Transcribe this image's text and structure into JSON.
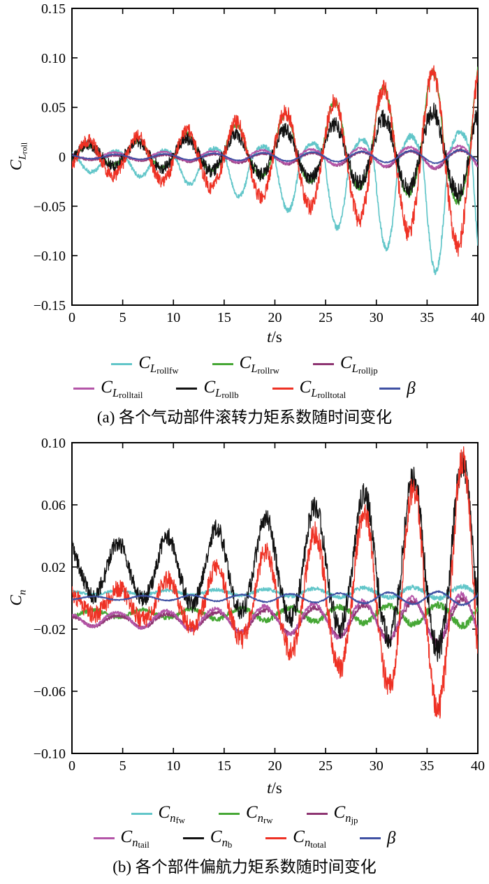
{
  "chart_data": [
    {
      "id": "a",
      "type": "line",
      "caption": "(a) 各个气动部件滚转力矩系数随时间变化",
      "xlabel_italic": "t",
      "xlabel_rest": "/s",
      "ylabel": {
        "base": "C",
        "sub_italic": "L",
        "sub_nested": "roll"
      },
      "xlim": [
        0,
        40
      ],
      "ylim": [
        -0.15,
        0.15
      ],
      "xticks": [
        0,
        5,
        10,
        15,
        20,
        25,
        30,
        35,
        40
      ],
      "xtick_labels": [
        "0",
        "5",
        "10",
        "15",
        "20",
        "25",
        "30",
        "35",
        "40"
      ],
      "yticks": [
        0.15,
        0.1,
        0.05,
        0,
        -0.05,
        -0.1,
        -0.15
      ],
      "ytick_labels": [
        "0.15",
        "0.10",
        "0.05",
        "0",
        "−0.05",
        "−0.10",
        "−0.15"
      ],
      "grid": false,
      "legend_position": "below",
      "legend_rows": [
        [
          0,
          1,
          2
        ],
        [
          3,
          4,
          5,
          6
        ]
      ],
      "series": [
        {
          "key": "CLrollfw",
          "label": {
            "base": "C",
            "sub_italic": "L",
            "sub_nested": "rollfw"
          },
          "color": "#62c6c9",
          "mean": -0.003,
          "amp_pos_start": 0.008,
          "amp_pos_end": 0.03,
          "amp_neg_start": 0.012,
          "amp_neg_end": 0.135,
          "pow": 1.8,
          "period_s": 4.85,
          "phase": 2.3,
          "noise": 0.003,
          "width": 1.7,
          "seed": 1
        },
        {
          "key": "CLrollrw",
          "label": {
            "base": "C",
            "sub_italic": "L",
            "sub_nested": "rollrw"
          },
          "color": "#46a735",
          "mean": 0.001,
          "amp_pos_start": 0.01,
          "amp_pos_end": 0.1,
          "amp_neg_start": 0.008,
          "amp_neg_end": 0.05,
          "pow": 1.6,
          "period_s": 4.85,
          "phase": -0.5,
          "noise": 0.003,
          "width": 1.7,
          "seed": 2
        },
        {
          "key": "CLrolljp",
          "label": {
            "base": "C",
            "sub_italic": "L",
            "sub_nested": "rolljp"
          },
          "color": "#8e3572",
          "mean": -0.001,
          "amp_pos_start": 0.002,
          "amp_pos_end": 0.008,
          "amp_neg_start": 0.002,
          "amp_neg_end": 0.012,
          "pow": 1.3,
          "period_s": 4.85,
          "phase": 2.3,
          "noise": 0.0012,
          "width": 1.6,
          "seed": 3
        },
        {
          "key": "CLrolltail",
          "label": {
            "base": "C",
            "sub_italic": "L",
            "sub_nested": "rolltail"
          },
          "color": "#b455a8",
          "mean": 0.001,
          "amp_pos_start": 0.003,
          "amp_pos_end": 0.01,
          "amp_neg_start": 0.003,
          "amp_neg_end": 0.014,
          "pow": 1.3,
          "period_s": 4.85,
          "phase": 2.45,
          "noise": 0.0012,
          "width": 1.6,
          "seed": 4
        },
        {
          "key": "CLrollb",
          "label": {
            "base": "C",
            "sub_italic": "L",
            "sub_nested": "rollb"
          },
          "color": "#111111",
          "mean": 0.002,
          "amp_pos_start": 0.01,
          "amp_pos_end": 0.05,
          "amp_neg_start": 0.01,
          "amp_neg_end": 0.042,
          "pow": 1.5,
          "period_s": 4.85,
          "phase": -0.5,
          "noise": 0.008,
          "width": 1.3,
          "seed": 5
        },
        {
          "key": "CLrolltotal",
          "label": {
            "base": "C",
            "sub_italic": "L",
            "sub_nested": "rolltotal"
          },
          "color": "#ee3124",
          "mean": -0.002,
          "amp_pos_start": 0.018,
          "amp_pos_end": 0.1,
          "amp_neg_start": 0.015,
          "amp_neg_end": 0.095,
          "pow": 1.6,
          "period_s": 4.85,
          "phase": -0.5,
          "noise": 0.009,
          "width": 1.3,
          "seed": 6
        },
        {
          "key": "beta",
          "label": {
            "base": "β"
          },
          "color": "#3f51a3",
          "mean": 0.0,
          "amp_pos_start": 0.002,
          "amp_pos_end": 0.007,
          "amp_neg_start": 0.002,
          "amp_neg_end": 0.007,
          "pow": 1.2,
          "period_s": 4.85,
          "phase": 2.3,
          "noise": 0.0004,
          "width": 1.8,
          "seed": 7
        }
      ]
    },
    {
      "id": "b",
      "type": "line",
      "caption": "(b) 各个部件偏航力矩系数随时间变化",
      "xlabel_italic": "t",
      "xlabel_rest": "/s",
      "ylabel": {
        "base": "C",
        "sub_italic": "n"
      },
      "xlim": [
        0,
        40
      ],
      "ylim": [
        -0.1,
        0.1
      ],
      "xticks": [
        0,
        5,
        10,
        15,
        20,
        25,
        30,
        35,
        40
      ],
      "xtick_labels": [
        "0",
        "5",
        "10",
        "15",
        "20",
        "25",
        "30",
        "35",
        "40"
      ],
      "yticks": [
        0.1,
        0.06,
        0.02,
        -0.02,
        -0.06,
        -0.1
      ],
      "ytick_labels": [
        "0.10",
        "0.06",
        "0.02",
        "−0.02",
        "−0.06",
        "−0.10"
      ],
      "grid": false,
      "legend_position": "below",
      "legend_rows": [
        [
          0,
          1,
          2
        ],
        [
          3,
          4,
          5,
          6
        ]
      ],
      "series": [
        {
          "key": "Cnfw",
          "label": {
            "base": "C",
            "sub_italic": "n",
            "sub_nested": "fw"
          },
          "color": "#62c6c9",
          "mean": 0.0035,
          "amp_pos_start": 0.001,
          "amp_pos_end": 0.004,
          "amp_neg_start": 0.001,
          "amp_neg_end": 0.004,
          "pow": 1.2,
          "period_s": 4.85,
          "phase": 2.0,
          "noise": 0.0012,
          "width": 1.7,
          "seed": 8
        },
        {
          "key": "Cnrw",
          "label": {
            "base": "C",
            "sub_italic": "n",
            "sub_nested": "rw"
          },
          "color": "#46a735",
          "mean": -0.01,
          "amp_pos_start": 0.002,
          "amp_pos_end": 0.006,
          "amp_neg_start": 0.002,
          "amp_neg_end": 0.008,
          "pow": 1.3,
          "period_s": 4.85,
          "phase": 5.14,
          "noise": 0.0018,
          "width": 1.7,
          "seed": 9
        },
        {
          "key": "Cnjp",
          "label": {
            "base": "C",
            "sub_italic": "n",
            "sub_nested": "jp"
          },
          "color": "#8e3572",
          "mean": -0.014,
          "amp_pos_start": 0.002,
          "amp_pos_end": 0.014,
          "amp_neg_start": 0.004,
          "amp_neg_end": 0.016,
          "pow": 1.4,
          "period_s": 4.85,
          "phase": 2.0,
          "noise": 0.0015,
          "width": 1.6,
          "seed": 10
        },
        {
          "key": "Cntail",
          "label": {
            "base": "C",
            "sub_italic": "n",
            "sub_nested": "tail"
          },
          "color": "#b455a8",
          "mean": -0.013,
          "amp_pos_start": 0.003,
          "amp_pos_end": 0.016,
          "amp_neg_start": 0.005,
          "amp_neg_end": 0.018,
          "pow": 1.4,
          "period_s": 4.85,
          "phase": 2.15,
          "noise": 0.0015,
          "width": 1.6,
          "seed": 11
        },
        {
          "key": "Cnb",
          "label": {
            "base": "C",
            "sub_italic": "n",
            "sub_nested": "b"
          },
          "color": "#111111",
          "mean": 0.016,
          "amp_pos_start": 0.018,
          "amp_pos_end": 0.075,
          "amp_neg_start": 0.014,
          "amp_neg_end": 0.055,
          "pow": 1.6,
          "period_s": 4.85,
          "phase": 2.0,
          "noise": 0.0075,
          "width": 1.3,
          "seed": 12
        },
        {
          "key": "Cntotal",
          "label": {
            "base": "C",
            "sub_italic": "n",
            "sub_nested": "total"
          },
          "color": "#ee3124",
          "mean": -0.004,
          "amp_pos_start": 0.008,
          "amp_pos_end": 0.098,
          "amp_neg_start": 0.006,
          "amp_neg_end": 0.078,
          "pow": 1.7,
          "period_s": 4.85,
          "phase": 2.0,
          "noise": 0.008,
          "width": 1.3,
          "seed": 13
        },
        {
          "key": "beta",
          "label": {
            "base": "β"
          },
          "color": "#3f51a3",
          "mean": 0.0,
          "amp_pos_start": 0.001,
          "amp_pos_end": 0.0045,
          "amp_neg_start": 0.001,
          "amp_neg_end": 0.0045,
          "pow": 1.2,
          "period_s": 4.85,
          "phase": 5.14,
          "noise": 0.0004,
          "width": 1.8,
          "seed": 14
        }
      ]
    }
  ]
}
